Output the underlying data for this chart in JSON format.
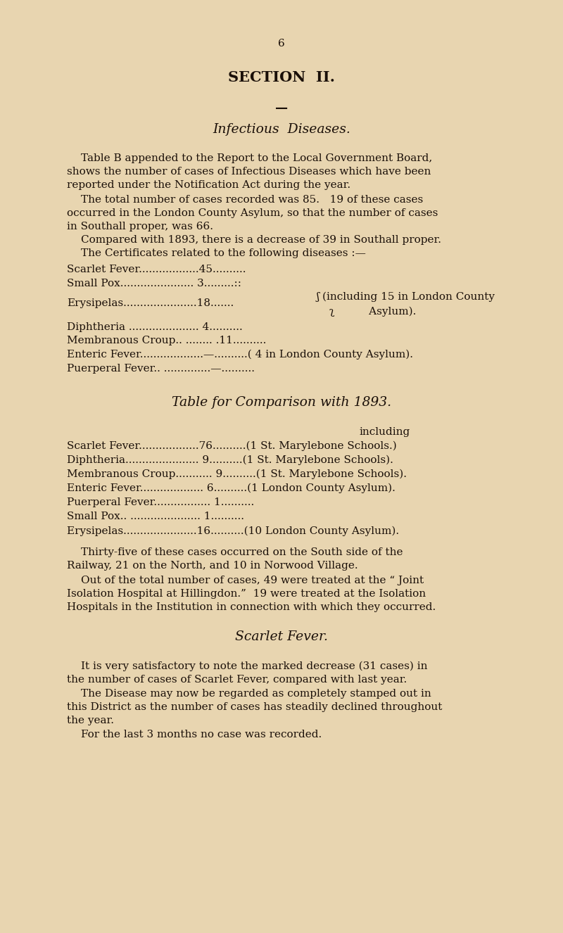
{
  "background_color": "#e8d5b0",
  "text_color": "#1a0f08",
  "page_number": "6",
  "section_title": "SECTION  II.",
  "divider": "—",
  "infectious_title": "Infectious  Diseases.",
  "comparison_title": "Table for Comparison with 1893.",
  "scarlet_fever_title": "Scarlet Fever.",
  "including_label": "including"
}
